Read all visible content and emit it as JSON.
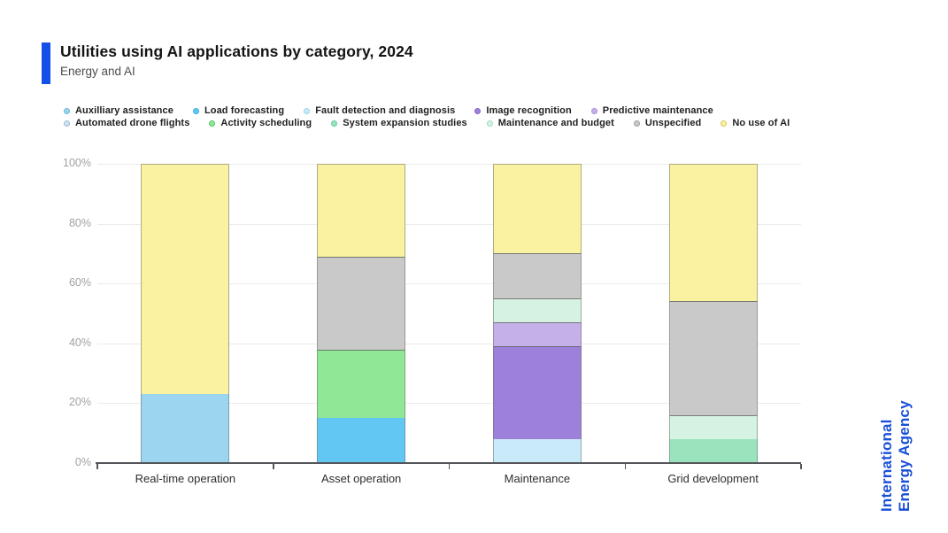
{
  "header": {
    "title": "Utilities using AI applications by category, 2024",
    "subtitle": "Energy and AI"
  },
  "source_logo": {
    "line1": "International",
    "line2": "Energy Agency"
  },
  "colors": {
    "accent_bar": "#1450E8",
    "iea_blue": "#1A50D8",
    "axis_line": "#54565A",
    "gridline": "#EBEBEB",
    "ytick_text": "#A1A1A1",
    "xtick_text": "#2E2E2E"
  },
  "chart_data": {
    "type": "bar",
    "subtype": "stacked-percent",
    "title": "Utilities using AI applications by category, 2024",
    "xlabel": "",
    "ylabel": "",
    "ylim": [
      0,
      100
    ],
    "yticks": [
      0,
      20,
      40,
      60,
      80,
      100
    ],
    "ytick_suffix": "%",
    "grid": "horizontal",
    "legend_position": "top",
    "legend_split_index": 5,
    "categories": [
      "Real-time operation",
      "Asset operation",
      "Maintenance",
      "Grid development"
    ],
    "series": [
      {
        "name": "Auxilliary assistance",
        "color": "#9CD5F0",
        "dot": "#6FB4D8",
        "values": [
          23,
          0,
          0,
          0
        ]
      },
      {
        "name": "Load forecasting",
        "color": "#63C7F3",
        "dot": "#3BAEE8",
        "values": [
          0,
          15,
          0,
          0
        ]
      },
      {
        "name": "Fault detection and diagnosis",
        "color": "#C9EAF8",
        "dot": "#9ED2EC",
        "values": [
          0,
          0,
          8,
          0
        ]
      },
      {
        "name": "Image recognition",
        "color": "#9C80DA",
        "dot": "#8565CE",
        "values": [
          0,
          0,
          31,
          0
        ]
      },
      {
        "name": "Predictive maintenance",
        "color": "#C5B0E9",
        "dot": "#A98FDE",
        "values": [
          0,
          0,
          8,
          0
        ]
      },
      {
        "name": "Automated drone flights",
        "color": "#CFE3EF",
        "dot": "#9FBCD2",
        "values": [
          0,
          0,
          0,
          0
        ]
      },
      {
        "name": "Activity scheduling",
        "color": "#90E795",
        "dot": "#54C667",
        "values": [
          0,
          23,
          0,
          0
        ]
      },
      {
        "name": "System expansion studies",
        "color": "#9BE3BC",
        "dot": "#5FCD9C",
        "values": [
          0,
          0,
          0,
          8
        ]
      },
      {
        "name": "Maintenance and budget",
        "color": "#D5F2E2",
        "dot": "#9BDDBE",
        "values": [
          0,
          0,
          8,
          8
        ]
      },
      {
        "name": "Unspecified",
        "color": "#C9C9C9",
        "dot": "#9E9E9E",
        "values": [
          0,
          31,
          15,
          38
        ]
      },
      {
        "name": "No use of AI",
        "color": "#FAF1A1",
        "dot": "#D6C85A",
        "values": [
          77,
          31,
          30,
          46
        ]
      }
    ]
  }
}
